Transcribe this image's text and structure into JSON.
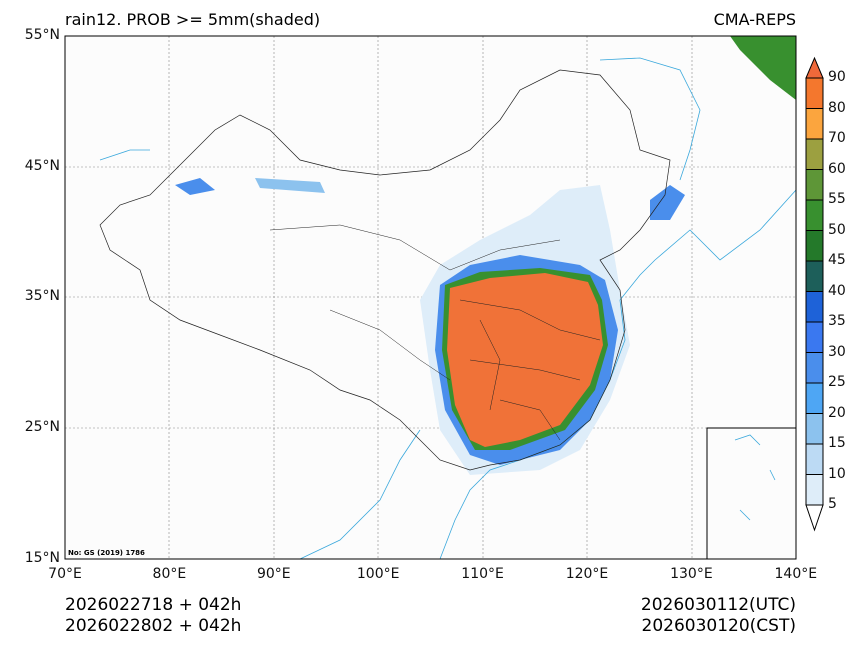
{
  "title_left": "rain12. PROB >= 5mm(shaded)",
  "title_right": "CMA-REPS",
  "lat_ticks": [
    "15°N",
    "25°N",
    "35°N",
    "45°N",
    "55°N"
  ],
  "lon_ticks": [
    "70°E",
    "80°E",
    "90°E",
    "100°E",
    "110°E",
    "120°E",
    "130°E",
    "140°E"
  ],
  "map_note": "No: GS (2019) 1786",
  "footer": {
    "init_utc": "2026022718  +  042h",
    "init_cst": "2026022802  +  042h",
    "valid_utc": "2026030112(UTC)",
    "valid_cst": "2026030120(CST)"
  },
  "colorbar": {
    "labels": [
      "90",
      "80",
      "70",
      "60",
      "55",
      "50",
      "45",
      "40",
      "35",
      "30",
      "25",
      "20",
      "15",
      "10",
      "5"
    ],
    "colors": [
      "#f4772d",
      "#fba53e",
      "#9ca040",
      "#5e9637",
      "#38902f",
      "#24792a",
      "#1d5f5a",
      "#1e62d8",
      "#3a78f0",
      "#4a8eec",
      "#4ea6f4",
      "#8cc2ee",
      "#bcdaf4",
      "#deedf9"
    ],
    "over_color": "#f0693a",
    "under_color": "#ffffff"
  },
  "colors": {
    "coast": "#3aa8dc",
    "border": "#222222",
    "prob_high": "#f07238"
  }
}
